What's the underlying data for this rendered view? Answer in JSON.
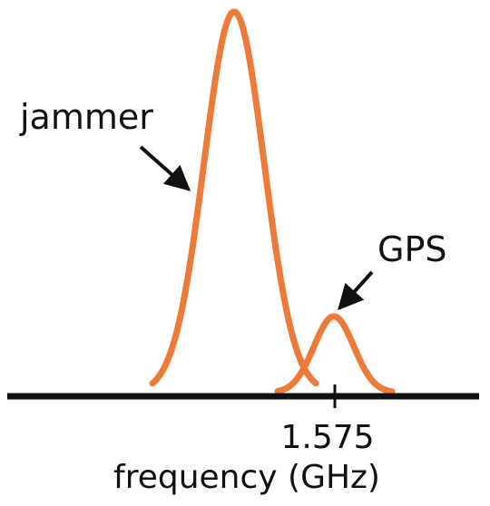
{
  "labels": {
    "jammer": "jammer",
    "gps": "GPS",
    "tick": "1.575",
    "axis": "frequency (GHz)"
  },
  "colors": {
    "peak": "#ee7a3a",
    "axis": "#111111",
    "arrow": "#111111"
  }
}
